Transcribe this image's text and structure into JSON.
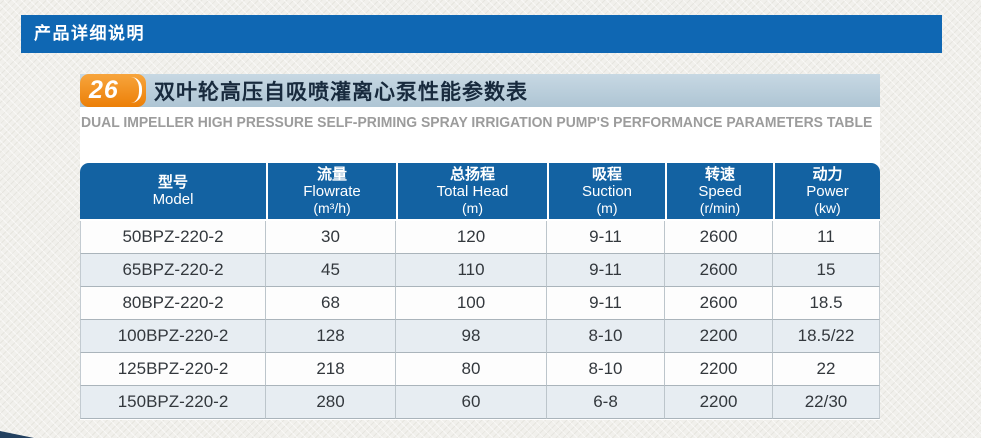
{
  "header_bar": {
    "label": "产品详细说明"
  },
  "section": {
    "badge_number": "26",
    "title_zh": "双叶轮高压自吸喷灌离心泵性能参数表",
    "title_en": "DUAL IMPELLER HIGH PRESSURE SELF-PRIMING SPRAY IRRIGATION PUMP'S PERFORMANCE PARAMETERS TABLE"
  },
  "table": {
    "columns": [
      {
        "zh": "型号",
        "en": "Model",
        "unit": ""
      },
      {
        "zh": "流量",
        "en": "Flowrate",
        "unit": "(m³/h)"
      },
      {
        "zh": "总扬程",
        "en": "Total Head",
        "unit": "(m)"
      },
      {
        "zh": "吸程",
        "en": "Suction",
        "unit": "(m)"
      },
      {
        "zh": "转速",
        "en": "Speed",
        "unit": "(r/min)"
      },
      {
        "zh": "动力",
        "en": "Power",
        "unit": "(kw)"
      }
    ],
    "rows": [
      [
        "50BPZ-220-2",
        "30",
        "120",
        "9-11",
        "2600",
        "11"
      ],
      [
        "65BPZ-220-2",
        "45",
        "110",
        "9-11",
        "2600",
        "15"
      ],
      [
        "80BPZ-220-2",
        "68",
        "100",
        "9-11",
        "2600",
        "18.5"
      ],
      [
        "100BPZ-220-2",
        "128",
        "98",
        "8-10",
        "2200",
        "18.5/22"
      ],
      [
        "125BPZ-220-2",
        "218",
        "80",
        "8-10",
        "2200",
        "22"
      ],
      [
        "150BPZ-220-2",
        "280",
        "60",
        "6-8",
        "2200",
        "22/30"
      ]
    ]
  },
  "colors": {
    "top_bar_blue": "#0f67b3",
    "table_header_blue": "#1362a2",
    "title_band_blue": "#b9cedb",
    "badge_orange": "#ef8a16",
    "row_alt_bg": "#e7edf2",
    "subtitle_gray": "#9c9c9c",
    "title_text_navy": "#182a3d"
  }
}
